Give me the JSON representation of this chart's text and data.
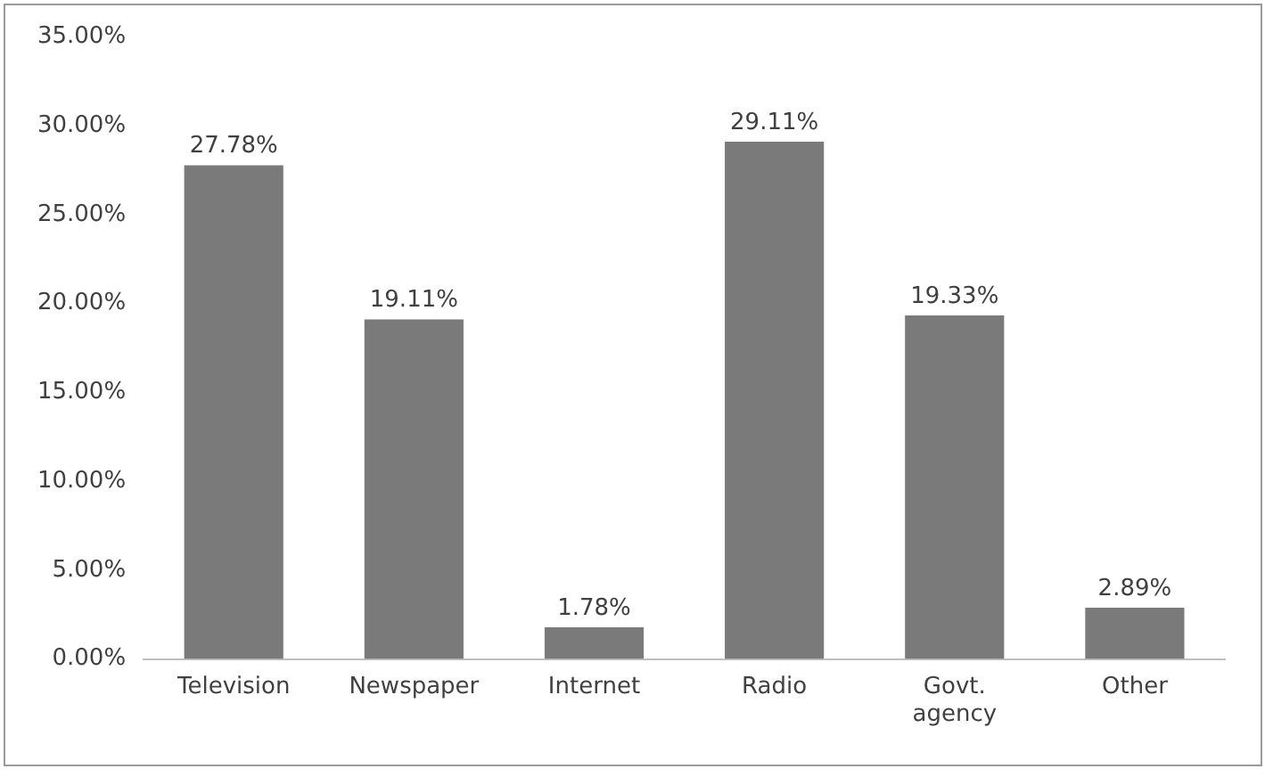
{
  "chart_data": {
    "type": "bar",
    "categories": [
      "Television",
      "Newspaper",
      "Internet",
      "Radio",
      "Govt. agency",
      "Other"
    ],
    "values": [
      27.78,
      19.11,
      1.78,
      29.11,
      19.33,
      2.89
    ],
    "value_labels": [
      "27.78%",
      "19.11%",
      "1.78%",
      "29.11%",
      "19.33%",
      "2.89%"
    ],
    "color": "#7a7a7a",
    "ylim": [
      0,
      35
    ],
    "yticks": [
      {
        "value": 0,
        "label": "0.00%"
      },
      {
        "value": 5,
        "label": "5.00%"
      },
      {
        "value": 10,
        "label": "10.00%"
      },
      {
        "value": 15,
        "label": "15.00%"
      },
      {
        "value": 20,
        "label": "20.00%"
      },
      {
        "value": 25,
        "label": "25.00%"
      },
      {
        "value": 30,
        "label": "30.00%"
      },
      {
        "value": 35,
        "label": "35.00%"
      }
    ],
    "grid": false,
    "legend": false
  }
}
